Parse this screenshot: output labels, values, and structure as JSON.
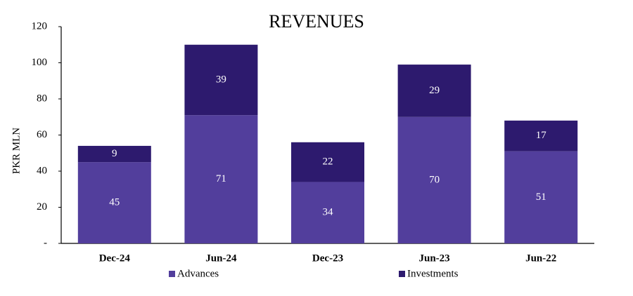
{
  "chart_data": {
    "type": "stacked_bar",
    "title": "REVENUES",
    "y_label": "PKR MLN",
    "categories": [
      "Dec-24",
      "Jun-24",
      "Dec-23",
      "Jun-23",
      "Jun-22"
    ],
    "series": [
      {
        "name": "Advances",
        "color": "#523e9c",
        "values": [
          45,
          71,
          34,
          70,
          51
        ]
      },
      {
        "name": "Investments",
        "color": "#2d1a6e",
        "values": [
          9,
          39,
          22,
          29,
          17
        ]
      }
    ],
    "ylim": [
      0,
      120
    ],
    "yticks": [
      {
        "value": 0,
        "label": "-"
      },
      20,
      40,
      60,
      80,
      100,
      120
    ]
  }
}
